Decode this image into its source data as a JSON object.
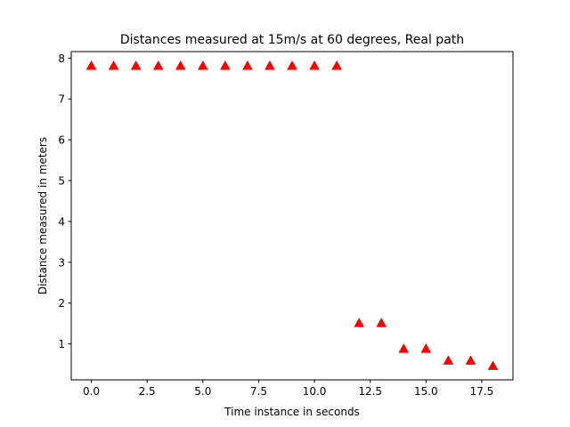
{
  "chart_data": {
    "type": "scatter",
    "title": "Distances measured at 15m/s at 60 degrees, Real path",
    "xlabel": "Time instance in seconds",
    "ylabel": "Distance measured in meters",
    "xlim": [
      -0.9,
      18.9
    ],
    "ylim": [
      0.12,
      8.16
    ],
    "xticks": [
      0,
      2.5,
      5,
      7.5,
      10,
      12.5,
      15,
      17.5
    ],
    "xtick_labels": [
      "0.0",
      "2.5",
      "5.0",
      "7.5",
      "10.0",
      "12.5",
      "15.0",
      "17.5"
    ],
    "yticks": [
      1,
      2,
      3,
      4,
      5,
      6,
      7,
      8
    ],
    "ytick_labels": [
      "1",
      "2",
      "3",
      "4",
      "5",
      "6",
      "7",
      "8"
    ],
    "grid": false,
    "marker": "triangle-up",
    "color": "#ff0000",
    "x": [
      0,
      1,
      2,
      3,
      4,
      5,
      6,
      7,
      8,
      9,
      10,
      11,
      12,
      13,
      14,
      15,
      16,
      17,
      18
    ],
    "y": [
      7.8,
      7.8,
      7.8,
      7.8,
      7.8,
      7.8,
      7.8,
      7.8,
      7.8,
      7.8,
      7.8,
      7.8,
      1.5,
      1.5,
      0.87,
      0.87,
      0.58,
      0.58,
      0.45
    ]
  }
}
